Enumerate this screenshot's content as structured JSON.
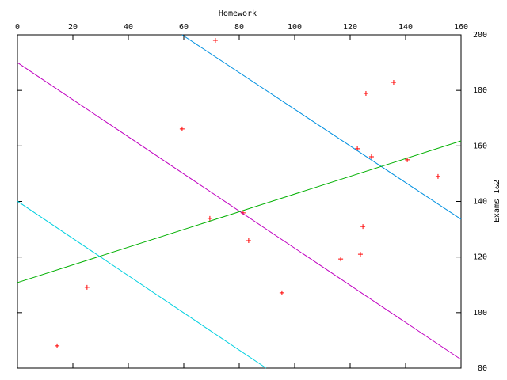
{
  "chart_data": {
    "type": "scatter",
    "x_label": "Homework",
    "y_label": "Exams 1&2",
    "xlim": [
      0,
      160
    ],
    "xticks": [
      0,
      20,
      40,
      60,
      80,
      100,
      120,
      140,
      160
    ],
    "ylim": [
      80,
      200
    ],
    "yticks": [
      80,
      100,
      120,
      140,
      160,
      180,
      200
    ],
    "x_axis_position": "top",
    "y_axis_position": "right",
    "series": [
      {
        "style": "points",
        "color": "#ff0000",
        "x": [
          71.4,
          59.4,
          135.7,
          125.7,
          122.6,
          127.7,
          140.6,
          151.7,
          69.4,
          81.4,
          83.4,
          124.6,
          123.7,
          116.6,
          95.4,
          25.1,
          14.3
        ],
        "values": [
          198,
          166.1,
          182.9,
          178.9,
          159,
          156.1,
          155,
          149,
          133.9,
          135.9,
          125.9,
          131,
          121,
          119.3,
          107.1,
          109.1,
          88
        ]
      },
      {
        "style": "lines",
        "color": "#0090e0",
        "x": [
          59.4,
          160
        ],
        "values": [
          200,
          133.6
        ]
      },
      {
        "style": "lines",
        "color": "#c000c0",
        "x": [
          0,
          160
        ],
        "values": [
          190,
          83.1
        ]
      },
      {
        "style": "lines",
        "color": "#00b000",
        "x": [
          0,
          160
        ],
        "values": [
          110.8,
          161.8
        ]
      },
      {
        "style": "lines",
        "color": "#00d0e0",
        "x": [
          0,
          89.7
        ],
        "values": [
          140.1,
          80
        ]
      }
    ]
  }
}
